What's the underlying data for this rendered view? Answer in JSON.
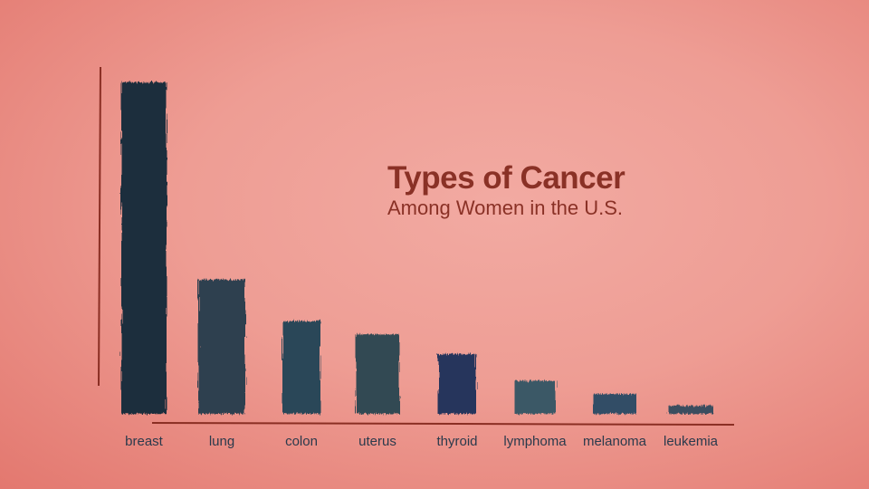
{
  "chart_data": {
    "type": "bar",
    "title": "Types of Cancer",
    "subtitle": "Among Women in the U.S.",
    "xlabel": "",
    "ylabel": "",
    "categories": [
      "breast",
      "lung",
      "colon",
      "uterus",
      "thyroid",
      "lymphoma",
      "melanoma",
      "leukemia"
    ],
    "values": [
      100,
      40.5,
      28,
      24,
      18,
      10,
      6,
      2.5
    ],
    "ylim": [
      0,
      100
    ],
    "grid": false,
    "colors": [
      "#1f2d3c",
      "#2f4050",
      "#2a4758",
      "#334a52",
      "#27365c",
      "#3a5866",
      "#324d66",
      "#3a4d5e"
    ],
    "axis_color": "#8a2e23"
  }
}
